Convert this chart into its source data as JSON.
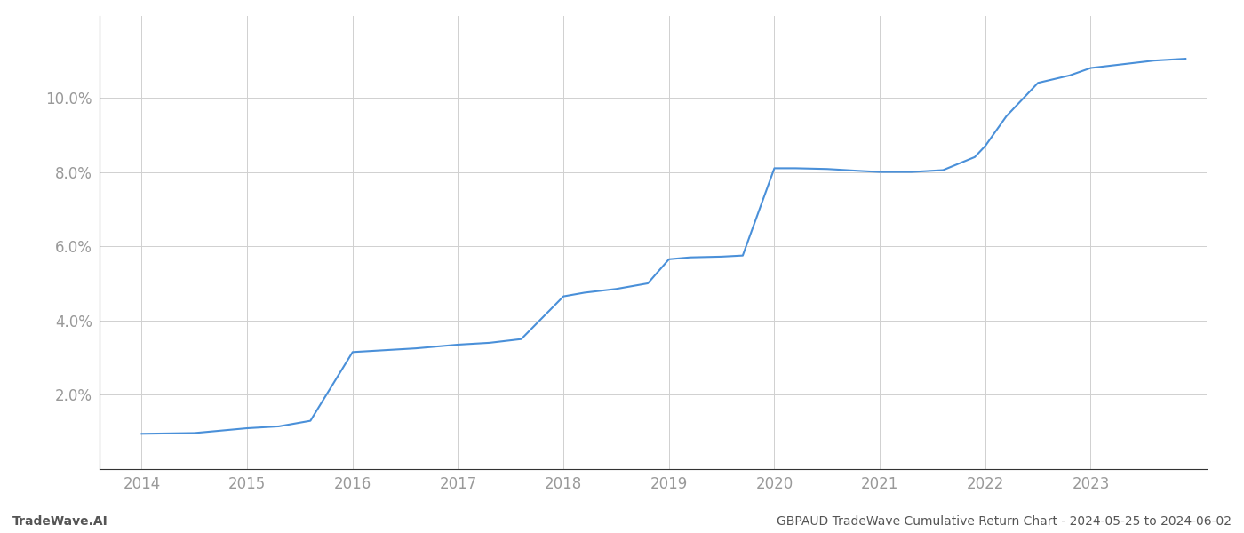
{
  "x_years": [
    2014.0,
    2014.5,
    2015.0,
    2015.3,
    2015.6,
    2016.0,
    2016.3,
    2016.6,
    2017.0,
    2017.3,
    2017.6,
    2018.0,
    2018.2,
    2018.5,
    2018.8,
    2019.0,
    2019.2,
    2019.5,
    2019.7,
    2020.0,
    2020.2,
    2020.5,
    2020.8,
    2021.0,
    2021.3,
    2021.6,
    2021.9,
    2022.0,
    2022.2,
    2022.5,
    2022.8,
    2023.0,
    2023.3,
    2023.6,
    2023.9
  ],
  "y_values": [
    0.95,
    0.97,
    1.1,
    1.15,
    1.3,
    3.15,
    3.2,
    3.25,
    3.35,
    3.4,
    3.5,
    4.65,
    4.75,
    4.85,
    5.0,
    5.65,
    5.7,
    5.72,
    5.75,
    8.1,
    8.1,
    8.08,
    8.03,
    8.0,
    8.0,
    8.05,
    8.4,
    8.7,
    9.5,
    10.4,
    10.6,
    10.8,
    10.9,
    11.0,
    11.05
  ],
  "line_color": "#4a90d9",
  "line_width": 1.5,
  "background_color": "#ffffff",
  "grid_color": "#d0d0d0",
  "footer_left": "TradeWave.AI",
  "footer_right": "GBPAUD TradeWave Cumulative Return Chart - 2024-05-25 to 2024-06-02",
  "xlim": [
    2013.6,
    2024.1
  ],
  "ylim": [
    0.0,
    12.2
  ],
  "yticks": [
    2.0,
    4.0,
    6.0,
    8.0,
    10.0
  ],
  "xticks": [
    2014,
    2015,
    2016,
    2017,
    2018,
    2019,
    2020,
    2021,
    2022,
    2023
  ],
  "tick_label_color": "#999999",
  "spine_color": "#333333",
  "footer_color": "#555555",
  "footer_fontsize": 10,
  "tick_fontsize": 12
}
